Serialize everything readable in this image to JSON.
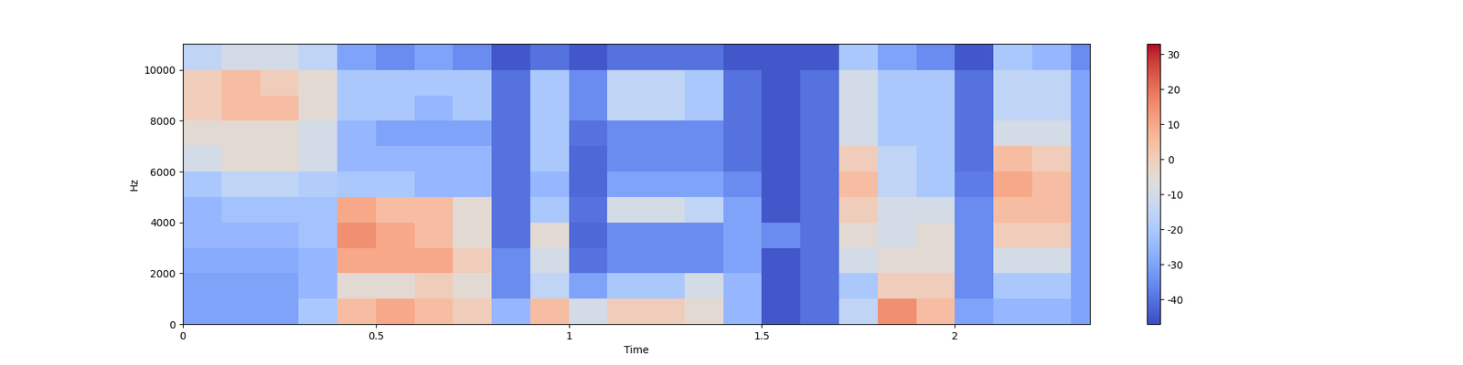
{
  "chart_data": {
    "type": "heatmap",
    "x_label": "Time",
    "y_label": "Hz",
    "x_edges": [
      0,
      0.1,
      0.2,
      0.3,
      0.4,
      0.5,
      0.6,
      0.7,
      0.8,
      0.9,
      1.0,
      1.1,
      1.2,
      1.3,
      1.4,
      1.5,
      1.6,
      1.7,
      1.8,
      1.9,
      2.0,
      2.1,
      2.2,
      2.3,
      2.35
    ],
    "y_edges": [
      0,
      1000,
      2000,
      3000,
      4000,
      5000,
      6000,
      7000,
      8000,
      9000,
      10000,
      11025
    ],
    "cells": [
      [
        -30,
        -30,
        -30,
        -20,
        5,
        10,
        5,
        0,
        -25,
        5,
        -10,
        0,
        0,
        -5,
        -25,
        -45,
        -40,
        -15,
        15,
        5,
        -30,
        -25,
        -25,
        -30
      ],
      [
        -30,
        -30,
        -30,
        -25,
        -5,
        -5,
        0,
        -5,
        -35,
        -15,
        -30,
        -20,
        -20,
        -10,
        -25,
        -45,
        -40,
        -20,
        0,
        0,
        -35,
        -20,
        -20,
        -30
      ],
      [
        -28,
        -28,
        -28,
        -25,
        10,
        10,
        10,
        0,
        -35,
        -10,
        -40,
        -35,
        -35,
        -35,
        -30,
        -45,
        -40,
        -10,
        -5,
        -5,
        -35,
        -10,
        -10,
        -30
      ],
      [
        -25,
        -25,
        -25,
        -22,
        15,
        10,
        5,
        -5,
        -40,
        -5,
        -42,
        -35,
        -35,
        -35,
        -30,
        -35,
        -40,
        -5,
        -10,
        -5,
        -35,
        0,
        0,
        -30
      ],
      [
        -25,
        -22,
        -22,
        -22,
        10,
        5,
        5,
        -5,
        -40,
        -20,
        -40,
        -10,
        -10,
        -15,
        -30,
        -45,
        -40,
        0,
        -10,
        -10,
        -35,
        5,
        5,
        -30
      ],
      [
        -20,
        -15,
        -15,
        -18,
        -20,
        -20,
        -25,
        -25,
        -40,
        -25,
        -42,
        -30,
        -30,
        -30,
        -35,
        -45,
        -40,
        5,
        -15,
        -20,
        -38,
        10,
        5,
        -30
      ],
      [
        -10,
        -5,
        -5,
        -10,
        -25,
        -25,
        -25,
        -25,
        -40,
        -20,
        -42,
        -35,
        -35,
        -35,
        -40,
        -45,
        -40,
        0,
        -15,
        -20,
        -40,
        5,
        0,
        -30
      ],
      [
        -5,
        -5,
        -5,
        -10,
        -25,
        -30,
        -30,
        -30,
        -40,
        -20,
        -40,
        -35,
        -35,
        -35,
        -40,
        -45,
        -40,
        -10,
        -20,
        -20,
        -40,
        -10,
        -10,
        -30
      ],
      [
        0,
        5,
        5,
        -5,
        -20,
        -20,
        -25,
        -20,
        -40,
        -20,
        -35,
        -15,
        -15,
        -20,
        -40,
        -45,
        -40,
        -10,
        -20,
        -20,
        -40,
        -15,
        -15,
        -30
      ],
      [
        0,
        5,
        0,
        -5,
        -20,
        -20,
        -20,
        -20,
        -40,
        -20,
        -35,
        -15,
        -15,
        -20,
        -40,
        -45,
        -40,
        -10,
        -20,
        -20,
        -40,
        -15,
        -15,
        -30
      ],
      [
        -15,
        -10,
        -10,
        -15,
        -30,
        -35,
        -30,
        -35,
        -45,
        -40,
        -45,
        -40,
        -40,
        -40,
        -45,
        -45,
        -45,
        -20,
        -30,
        -35,
        -45,
        -20,
        -25,
        -35
      ]
    ],
    "xlim": [
      0,
      2.35
    ],
    "ylim": [
      0,
      11025
    ],
    "xticks": [
      0,
      0.5,
      1,
      1.5,
      2
    ],
    "yticks": [
      0,
      2000,
      4000,
      6000,
      8000,
      10000
    ],
    "colorbar_range": [
      -47,
      33
    ],
    "colorbar_ticks": [
      -40,
      -30,
      -20,
      -10,
      0,
      10,
      20,
      30
    ]
  }
}
